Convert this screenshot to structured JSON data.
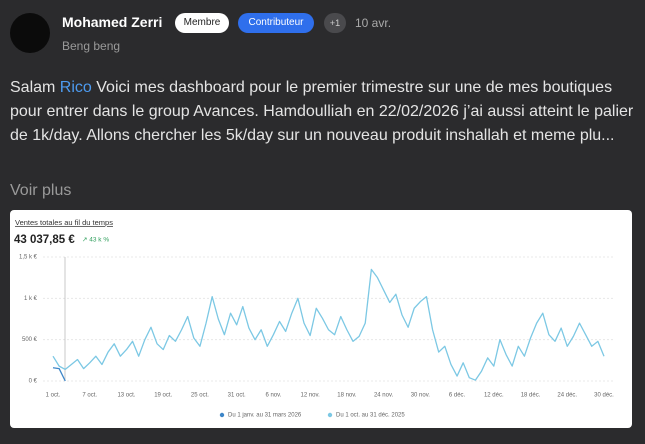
{
  "post": {
    "author": "Mohamed Zerri",
    "badges": [
      "Membre",
      "Contributeur",
      "+1"
    ],
    "date": "10 avr.",
    "subtitle": "Beng beng",
    "body": [
      "Salam ",
      "Rico",
      " Voici mes dashboard pour le premier trimestre sur une de mes boutiques pour entrer dans le group Avances. Hamdoulliah en 22/02/2026 j’ai aussi atteint le palier de 1k/day. Allons chercher les 5k/day sur un nouveau produit inshallah et meme plu..."
    ],
    "more": "Voir plus"
  },
  "chart_data": {
    "type": "line",
    "title": "Ventes totales au fil du temps",
    "total": "43 037,85 €",
    "change": "↗ 43 k %",
    "categories": [
      "1 oct.",
      null,
      null,
      null,
      null,
      null,
      "7 oct.",
      null,
      null,
      null,
      null,
      null,
      "13 oct.",
      null,
      null,
      null,
      null,
      null,
      "19 oct.",
      null,
      null,
      null,
      null,
      null,
      "25 oct.",
      null,
      null,
      null,
      null,
      null,
      "31 oct.",
      null,
      null,
      null,
      null,
      null,
      "6 nov.",
      null,
      null,
      null,
      null,
      null,
      "12 nov.",
      null,
      null,
      null,
      null,
      null,
      "18 nov.",
      null,
      null,
      null,
      null,
      null,
      "24 nov.",
      null,
      null,
      null,
      null,
      null,
      "30 nov.",
      null,
      null,
      null,
      null,
      null,
      "6 déc.",
      null,
      null,
      null,
      null,
      null,
      "12 déc.",
      null,
      null,
      null,
      null,
      null,
      "18 déc.",
      null,
      null,
      null,
      null,
      null,
      "24 déc.",
      null,
      null,
      null,
      null,
      null,
      "30 déc."
    ],
    "series": [
      {
        "name": "Du 1 janv. au 31 mars 2026",
        "color": "#3d86c8",
        "values": [
          160,
          150,
          0,
          null,
          null,
          null,
          null,
          null,
          null,
          null,
          null,
          null,
          null,
          null,
          null,
          null,
          null,
          null,
          null,
          null,
          null,
          null,
          null,
          null,
          null,
          null,
          null,
          null,
          null,
          null,
          null,
          null,
          null,
          null,
          null,
          null,
          null,
          null,
          null,
          null,
          null,
          null,
          null,
          null,
          null,
          null,
          null,
          null,
          null,
          null,
          null,
          null,
          null,
          null,
          null,
          null,
          null,
          null,
          null,
          null,
          null,
          null,
          null,
          null,
          null,
          null,
          null,
          null,
          null,
          null,
          null,
          null,
          null,
          null,
          null,
          null,
          null,
          null,
          null,
          null,
          null,
          null,
          null,
          null,
          null,
          null,
          null,
          null,
          null,
          null,
          null
        ]
      },
      {
        "name": "Du 1 oct. au 31 déc. 2025",
        "color": "#7cc8e4",
        "values": [
          300,
          180,
          140,
          200,
          260,
          150,
          220,
          300,
          200,
          350,
          450,
          300,
          380,
          480,
          300,
          500,
          650,
          450,
          380,
          550,
          480,
          620,
          780,
          520,
          420,
          700,
          1020,
          750,
          560,
          820,
          680,
          900,
          640,
          500,
          620,
          420,
          560,
          720,
          600,
          820,
          1000,
          700,
          550,
          880,
          760,
          620,
          560,
          780,
          620,
          480,
          540,
          700,
          1350,
          1250,
          1100,
          950,
          1050,
          800,
          650,
          880,
          960,
          1020,
          620,
          350,
          420,
          200,
          60,
          220,
          40,
          10,
          120,
          280,
          180,
          500,
          320,
          180,
          420,
          300,
          520,
          700,
          820,
          560,
          480,
          640,
          420,
          540,
          700,
          560,
          420,
          480,
          300
        ]
      }
    ],
    "ylim": [
      0,
      1500
    ],
    "yticks": [
      {
        "value": 0,
        "label": "0 €"
      },
      {
        "value": 500,
        "label": "500 €"
      },
      {
        "value": 1000,
        "label": "1 k €"
      },
      {
        "value": 1500,
        "label": "1,5 k €"
      }
    ],
    "grid": true
  }
}
